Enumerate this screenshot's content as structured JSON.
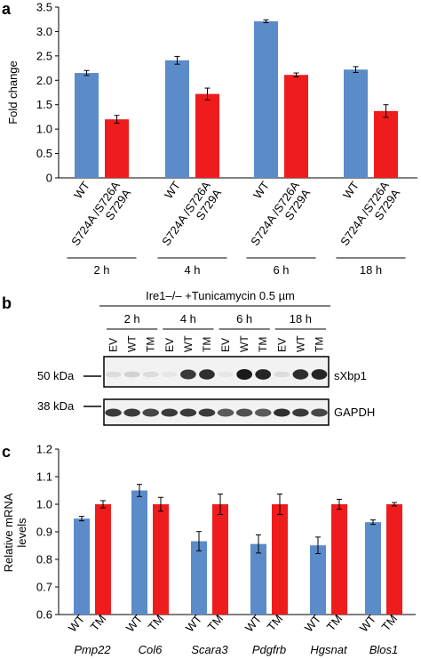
{
  "colors": {
    "wt": "#5B8BC9",
    "mutant": "#EE1C1C",
    "blot_bg": "#F2F2F2",
    "band": "#1A1A1A"
  },
  "panel_labels": {
    "a": "a",
    "b": "b",
    "c": "c"
  },
  "chart_data": [
    {
      "type": "bar",
      "panel": "a",
      "ylabel": "Fold change",
      "ylim": [
        0,
        3.5
      ],
      "yticks": [
        "0",
        "0.5",
        "1.0",
        "1.5",
        "2.0",
        "2.5",
        "3.0",
        "3.5"
      ],
      "group_labels": [
        "2 h",
        "4 h",
        "6 h",
        "18 h"
      ],
      "bar_labels": [
        "WT",
        "S724A /S726A S729A"
      ],
      "bar_label_lines": [
        [
          "WT"
        ],
        [
          "S724A /S726A",
          "S729A"
        ]
      ],
      "series": [
        {
          "values": [
            2.15,
            2.41,
            3.21,
            2.22
          ],
          "errors": [
            0.05,
            0.08,
            0.03,
            0.06
          ]
        },
        {
          "values": [
            1.2,
            1.72,
            2.11,
            1.37
          ],
          "errors": [
            0.08,
            0.12,
            0.04,
            0.13
          ]
        }
      ],
      "grid": false
    },
    {
      "type": "bar",
      "panel": "c",
      "ylabel": "Relative mRNA levels",
      "ylabel_lines": [
        "Relative mRNA",
        "levels"
      ],
      "ylim": [
        0.6,
        1.2
      ],
      "yticks": [
        "0.6",
        "0.7",
        "0.8",
        "0.9",
        "1.0",
        "1.1",
        "1.2"
      ],
      "categories": [
        "Pmp22",
        "Col6",
        "Scara3",
        "Pdgfrb",
        "Hgsnat",
        "Blos1"
      ],
      "bar_labels": [
        "WT",
        "TM"
      ],
      "series": [
        {
          "values": [
            0.948,
            1.05,
            0.866,
            0.856,
            0.851,
            0.935
          ],
          "errors": [
            0.008,
            0.022,
            0.035,
            0.033,
            0.03,
            0.008
          ]
        },
        {
          "values": [
            1.0,
            1.0,
            1.0,
            1.0,
            1.0,
            1.0
          ],
          "errors": [
            0.013,
            0.025,
            0.037,
            0.037,
            0.018,
            0.006
          ]
        }
      ],
      "grid": false
    }
  ],
  "blot": {
    "header": "Ire1–/–  +Tunicamycin 0.5 µm",
    "timepoints": [
      "2 h",
      "4 h",
      "6 h",
      "18 h"
    ],
    "lanes": [
      "EV",
      "WT",
      "TM",
      "EV",
      "WT",
      "TM",
      "EV",
      "WT",
      "TM",
      "EV",
      "WT",
      "TM"
    ],
    "size_markers": [
      "50 kDa",
      "38 kDa"
    ],
    "bands": [
      "sXbp1",
      "GAPDH"
    ],
    "sxbp1_intensity": [
      0.1,
      0.15,
      0.1,
      0.05,
      0.85,
      0.9,
      0.05,
      1.0,
      0.95,
      0.1,
      0.9,
      0.95
    ],
    "gapdh_intensity": [
      0.85,
      0.85,
      0.8,
      0.85,
      0.85,
      0.85,
      0.7,
      0.75,
      0.7,
      0.9,
      0.85,
      0.8
    ]
  }
}
